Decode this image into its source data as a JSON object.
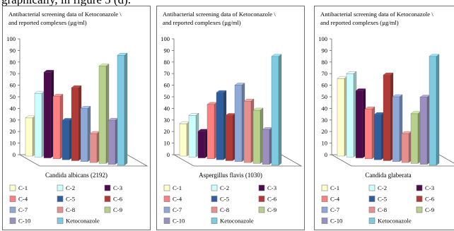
{
  "top_text": "graphically, in figure 5 (d).",
  "colors": {
    "C-1": "#ffffcc",
    "C-2": "#ccffff",
    "C-3": "#4d0a4d",
    "C-4": "#ff8080",
    "C-5": "#2e5e9e",
    "C-6": "#b23a36",
    "C-7": "#8ea8d8",
    "C-8": "#e6908e",
    "C-9": "#b7d08b",
    "C-10": "#9b8fc0",
    "Ketoconazole": "#7ccbe0"
  },
  "chart_data": [
    {
      "type": "bar",
      "title": "Antibacterial screening data of Ketoconazole \\ and reported complexes (µg/ml)",
      "title_lines": [
        "Antibacterial screening data of Ketoconazole \\",
        "and reported complexes (µg/ml)"
      ],
      "xlabel": "Candida albicans (2192)",
      "ylabel": "",
      "ylim": [
        0,
        100
      ],
      "yticks": [
        "0",
        "10",
        "20",
        "30",
        "40",
        "50",
        "60",
        "70",
        "80",
        "90",
        "100"
      ],
      "grid": false,
      "legend_position": "bottom",
      "categories": [
        "C-1",
        "C-2",
        "C-3",
        "C-4",
        "C-5",
        "C-6",
        "C-7",
        "C-8",
        "C-9",
        "C-10",
        "Ketoconazole"
      ],
      "values": [
        33,
        55,
        74,
        54,
        34,
        63,
        46,
        25,
        84,
        38,
        95
      ]
    },
    {
      "type": "bar",
      "title": "Antibacterial screening data of Ketoconazole \\ and reported complexes (µg/ml)",
      "title_lines": [
        "Antibacterial screening data of Ketoconazole \\",
        "and reported complexes (µg/ml)"
      ],
      "xlabel": "Aspergillus flavis (1030)",
      "ylabel": "",
      "ylim": [
        0,
        100
      ],
      "yticks": [
        "0",
        "10",
        "20",
        "30",
        "40",
        "50",
        "60",
        "70",
        "80",
        "90",
        "100"
      ],
      "grid": false,
      "legend_position": "bottom",
      "categories": [
        "C-1",
        "C-2",
        "C-3",
        "C-4",
        "C-5",
        "C-6",
        "C-7",
        "C-8",
        "C-9",
        "C-10",
        "Ketoconazole"
      ],
      "values": [
        28,
        36,
        23,
        47,
        58,
        39,
        66,
        53,
        46,
        30,
        94
      ]
    },
    {
      "type": "bar",
      "title": "Antibacterial screening data of Ketoconazole \\ and reported complexes (µg/ml)",
      "title_lines": [
        "Antibacterial screening data of Ketoconazole \\",
        "and reported complexes (µg/ml)"
      ],
      "xlabel": "Candida glaberata",
      "ylabel": "",
      "ylim": [
        0,
        100
      ],
      "yticks": [
        "0",
        "10",
        "20",
        "30",
        "40",
        "50",
        "60",
        "70",
        "80",
        "90",
        "100"
      ],
      "grid": false,
      "legend_position": "bottom",
      "categories": [
        "C-1",
        "C-2",
        "C-3",
        "C-4",
        "C-5",
        "C-6",
        "C-7",
        "C-8",
        "C-9",
        "C-10",
        "Ketoconazole"
      ],
      "values": [
        67,
        72,
        58,
        43,
        39,
        74,
        56,
        25,
        43,
        58,
        94
      ]
    }
  ]
}
